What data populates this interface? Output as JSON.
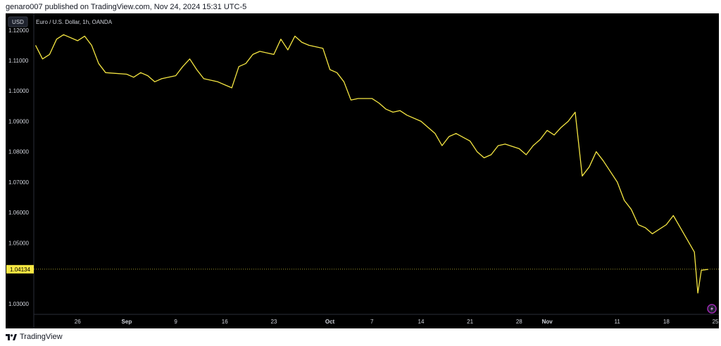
{
  "header": {
    "publish_line": "genaro007 published on TradingView.com, Nov 24, 2024 15:31 UTC-5"
  },
  "footer": {
    "brand": "TradingView"
  },
  "chart_data": {
    "type": "line",
    "title": "Euro / U.S. Dollar, 1h, OANDA",
    "currency_badge": "USD",
    "price_label": "1.04134",
    "last_price": 1.04134,
    "ylim": [
      1.0265,
      1.1255
    ],
    "grid": false,
    "yticks": [
      {
        "label": "1.12000",
        "value": 1.12
      },
      {
        "label": "1.11000",
        "value": 1.11
      },
      {
        "label": "1.10000",
        "value": 1.1
      },
      {
        "label": "1.09000",
        "value": 1.09
      },
      {
        "label": "1.08000",
        "value": 1.08
      },
      {
        "label": "1.07000",
        "value": 1.07
      },
      {
        "label": "1.06000",
        "value": 1.06
      },
      {
        "label": "1.05000",
        "value": 1.05
      },
      {
        "label": "1.03000",
        "value": 1.03
      }
    ],
    "xticks": [
      {
        "label": "26",
        "date": "2024-08-26",
        "bold": false
      },
      {
        "label": "Sep",
        "date": "2024-09-02",
        "bold": true
      },
      {
        "label": "9",
        "date": "2024-09-09",
        "bold": false
      },
      {
        "label": "16",
        "date": "2024-09-16",
        "bold": false
      },
      {
        "label": "23",
        "date": "2024-09-23",
        "bold": false
      },
      {
        "label": "Oct",
        "date": "2024-10-01",
        "bold": true
      },
      {
        "label": "7",
        "date": "2024-10-07",
        "bold": false
      },
      {
        "label": "14",
        "date": "2024-10-14",
        "bold": false
      },
      {
        "label": "21",
        "date": "2024-10-21",
        "bold": false
      },
      {
        "label": "28",
        "date": "2024-10-28",
        "bold": false
      },
      {
        "label": "Nov",
        "date": "2024-11-01",
        "bold": true
      },
      {
        "label": "11",
        "date": "2024-11-11",
        "bold": false
      },
      {
        "label": "18",
        "date": "2024-11-18",
        "bold": false
      },
      {
        "label": "25",
        "date": "2024-11-25",
        "bold": false
      }
    ],
    "series": [
      {
        "color": "#f5e642",
        "points": [
          [
            "2024-08-20",
            1.115
          ],
          [
            "2024-08-21",
            1.1105
          ],
          [
            "2024-08-22",
            1.112
          ],
          [
            "2024-08-23",
            1.117
          ],
          [
            "2024-08-24",
            1.1185
          ],
          [
            "2024-08-26",
            1.1165
          ],
          [
            "2024-08-27",
            1.118
          ],
          [
            "2024-08-28",
            1.115
          ],
          [
            "2024-08-29",
            1.109
          ],
          [
            "2024-08-30",
            1.106
          ],
          [
            "2024-09-02",
            1.1055
          ],
          [
            "2024-09-03",
            1.1045
          ],
          [
            "2024-09-04",
            1.106
          ],
          [
            "2024-09-05",
            1.105
          ],
          [
            "2024-09-06",
            1.103
          ],
          [
            "2024-09-07",
            1.104
          ],
          [
            "2024-09-09",
            1.105
          ],
          [
            "2024-09-10",
            1.108
          ],
          [
            "2024-09-11",
            1.1105
          ],
          [
            "2024-09-12",
            1.107
          ],
          [
            "2024-09-13",
            1.104
          ],
          [
            "2024-09-15",
            1.103
          ],
          [
            "2024-09-16",
            1.102
          ],
          [
            "2024-09-17",
            1.101
          ],
          [
            "2024-09-18",
            1.108
          ],
          [
            "2024-09-19",
            1.109
          ],
          [
            "2024-09-20",
            1.112
          ],
          [
            "2024-09-21",
            1.113
          ],
          [
            "2024-09-23",
            1.112
          ],
          [
            "2024-09-24",
            1.117
          ],
          [
            "2024-09-25",
            1.1135
          ],
          [
            "2024-09-26",
            1.118
          ],
          [
            "2024-09-27",
            1.116
          ],
          [
            "2024-09-28",
            1.115
          ],
          [
            "2024-09-30",
            1.114
          ],
          [
            "2024-10-01",
            1.107
          ],
          [
            "2024-10-02",
            1.106
          ],
          [
            "2024-10-03",
            1.103
          ],
          [
            "2024-10-04",
            1.097
          ],
          [
            "2024-10-05",
            1.0975
          ],
          [
            "2024-10-07",
            1.0975
          ],
          [
            "2024-10-08",
            1.096
          ],
          [
            "2024-10-09",
            1.094
          ],
          [
            "2024-10-10",
            1.093
          ],
          [
            "2024-10-11",
            1.0935
          ],
          [
            "2024-10-12",
            1.092
          ],
          [
            "2024-10-14",
            1.09
          ],
          [
            "2024-10-15",
            1.088
          ],
          [
            "2024-10-16",
            1.086
          ],
          [
            "2024-10-17",
            1.082
          ],
          [
            "2024-10-18",
            1.085
          ],
          [
            "2024-10-19",
            1.086
          ],
          [
            "2024-10-21",
            1.0835
          ],
          [
            "2024-10-22",
            1.08
          ],
          [
            "2024-10-23",
            1.078
          ],
          [
            "2024-10-24",
            1.079
          ],
          [
            "2024-10-25",
            1.082
          ],
          [
            "2024-10-26",
            1.0825
          ],
          [
            "2024-10-28",
            1.081
          ],
          [
            "2024-10-29",
            1.079
          ],
          [
            "2024-10-30",
            1.082
          ],
          [
            "2024-10-31",
            1.084
          ],
          [
            "2024-11-01",
            1.087
          ],
          [
            "2024-11-02",
            1.0855
          ],
          [
            "2024-11-03",
            1.088
          ],
          [
            "2024-11-04",
            1.09
          ],
          [
            "2024-11-05",
            1.093
          ],
          [
            "2024-11-06",
            1.072
          ],
          [
            "2024-11-07",
            1.075
          ],
          [
            "2024-11-08",
            1.08
          ],
          [
            "2024-11-09",
            1.077
          ],
          [
            "2024-11-11",
            1.07
          ],
          [
            "2024-11-12",
            1.064
          ],
          [
            "2024-11-13",
            1.061
          ],
          [
            "2024-11-14",
            1.056
          ],
          [
            "2024-11-15",
            1.055
          ],
          [
            "2024-11-16",
            1.053
          ],
          [
            "2024-11-18",
            1.056
          ],
          [
            "2024-11-19",
            1.059
          ],
          [
            "2024-11-20",
            1.055
          ],
          [
            "2024-11-21",
            1.051
          ],
          [
            "2024-11-22",
            1.047
          ],
          [
            "2024-11-22T12:00",
            1.0335
          ],
          [
            "2024-11-23",
            1.041
          ],
          [
            "2024-11-24",
            1.0413
          ]
        ]
      }
    ]
  }
}
